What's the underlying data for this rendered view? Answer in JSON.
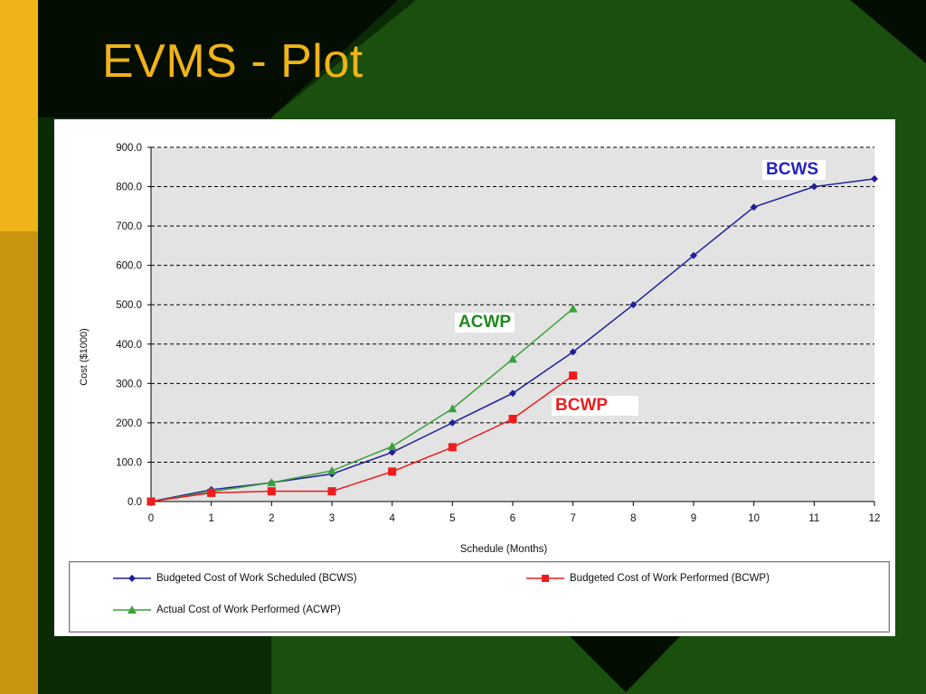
{
  "slide": {
    "title": "EVMS - Plot",
    "colors": {
      "background": "#0b2a06",
      "green_band": "#1a4f0d",
      "left_bar": "#f0b418",
      "title": "#f0b418"
    }
  },
  "chart_data": {
    "type": "line",
    "title": "",
    "xlabel": "Schedule (Months)",
    "ylabel": "Cost ($1000)",
    "xlim": [
      0,
      12
    ],
    "ylim": [
      0,
      900
    ],
    "x_ticks": [
      "0",
      "1",
      "2",
      "3",
      "4",
      "5",
      "6",
      "7",
      "8",
      "9",
      "10",
      "11",
      "12"
    ],
    "y_ticks": [
      "0.0",
      "100.0",
      "200.0",
      "300.0",
      "400.0",
      "500.0",
      "600.0",
      "700.0",
      "800.0",
      "900.0"
    ],
    "grid": "horizontal dashed",
    "plot_background": "#e3e3e3",
    "legend_placement": "bottom",
    "series": [
      {
        "name": "Budgeted Cost of Work Scheduled (BCWS)",
        "callout": "BCWS",
        "color": "#1f1f9c",
        "marker": "diamond",
        "x": [
          0,
          1,
          2,
          3,
          4,
          5,
          6,
          7,
          8,
          9,
          10,
          11,
          12
        ],
        "values": [
          0,
          30,
          48,
          70,
          125,
          200,
          275,
          380,
          500,
          625,
          748,
          800,
          820
        ]
      },
      {
        "name": "Budgeted Cost of Work Performed (BCWP)",
        "callout": "BCWP",
        "color": "#ee1c1c",
        "marker": "square",
        "x": [
          0,
          1,
          2,
          3,
          4,
          5,
          6,
          7
        ],
        "values": [
          0,
          22,
          26,
          26,
          76,
          138,
          210,
          320
        ]
      },
      {
        "name": "Actual Cost of Work Performed (ACWP)",
        "callout": "ACWP",
        "color": "#3aa13a",
        "marker": "triangle",
        "x": [
          0,
          1,
          2,
          3,
          4,
          5,
          6,
          7
        ],
        "values": [
          0,
          25,
          48,
          78,
          140,
          236,
          362,
          490
        ]
      }
    ]
  }
}
